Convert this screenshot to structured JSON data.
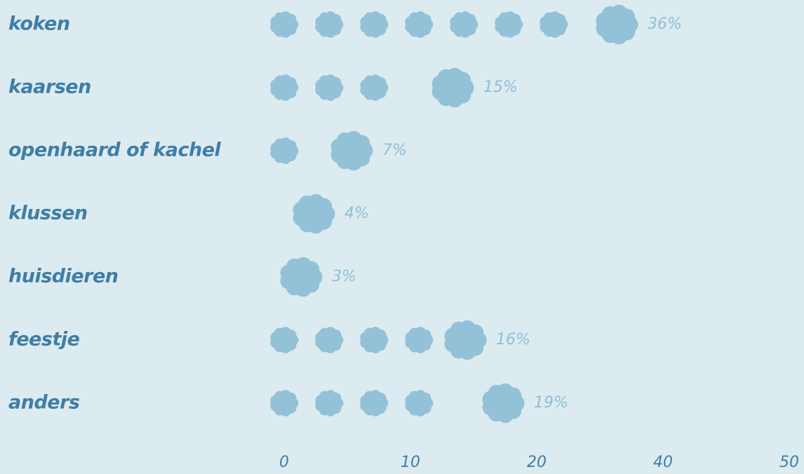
{
  "chart_data": {
    "type": "pictograph",
    "categories": [
      "koken",
      "kaarsen",
      "openhaard of kachel",
      "klussen",
      "huisdieren",
      "feestje",
      "anders"
    ],
    "values": [
      36,
      15,
      7,
      4,
      3,
      16,
      19
    ],
    "value_labels": [
      "36%",
      "15%",
      "7%",
      "4%",
      "3%",
      "16%",
      "19%"
    ],
    "color": "#93c2d8",
    "xlim": [
      0,
      50
    ],
    "xticks": [
      0,
      10,
      20,
      40,
      50
    ]
  }
}
